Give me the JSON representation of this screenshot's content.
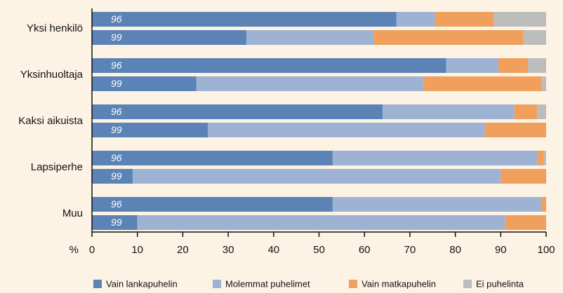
{
  "chart_data": {
    "type": "stacked_barh",
    "groups": [
      "Yksi henkilö",
      "Yksinhuoltaja",
      "Kaksi aikuista",
      "Lapsiperhe",
      "Muu"
    ],
    "categories": [
      "96",
      "99",
      "96",
      "99",
      "96",
      "99",
      "96",
      "99",
      "96",
      "99"
    ],
    "series": [
      {
        "name": "Vain lankapuhelin",
        "color": "#5b83b6",
        "values": [
          67,
          34,
          78,
          23,
          64,
          25.5,
          53,
          9,
          53,
          10
        ]
      },
      {
        "name": "Molemmat puhelimet",
        "color": "#9eb3d3",
        "values": [
          8.5,
          28,
          11.5,
          50,
          29,
          61,
          45,
          81,
          46,
          81
        ]
      },
      {
        "name": "Vain matkapuhelin",
        "color": "#f0a05c",
        "values": [
          13,
          33,
          6.5,
          26,
          5,
          13.5,
          1.5,
          10,
          1,
          9
        ]
      },
      {
        "name": "Ei puhelinta",
        "color": "#bdbdbd",
        "values": [
          11.5,
          5,
          4,
          1,
          2,
          0,
          0.5,
          0,
          0,
          0
        ]
      }
    ],
    "xlabel": "%",
    "xlim": [
      0,
      100
    ],
    "xticks": [
      0,
      10,
      20,
      30,
      40,
      50,
      60,
      70,
      80,
      90,
      100
    ]
  }
}
